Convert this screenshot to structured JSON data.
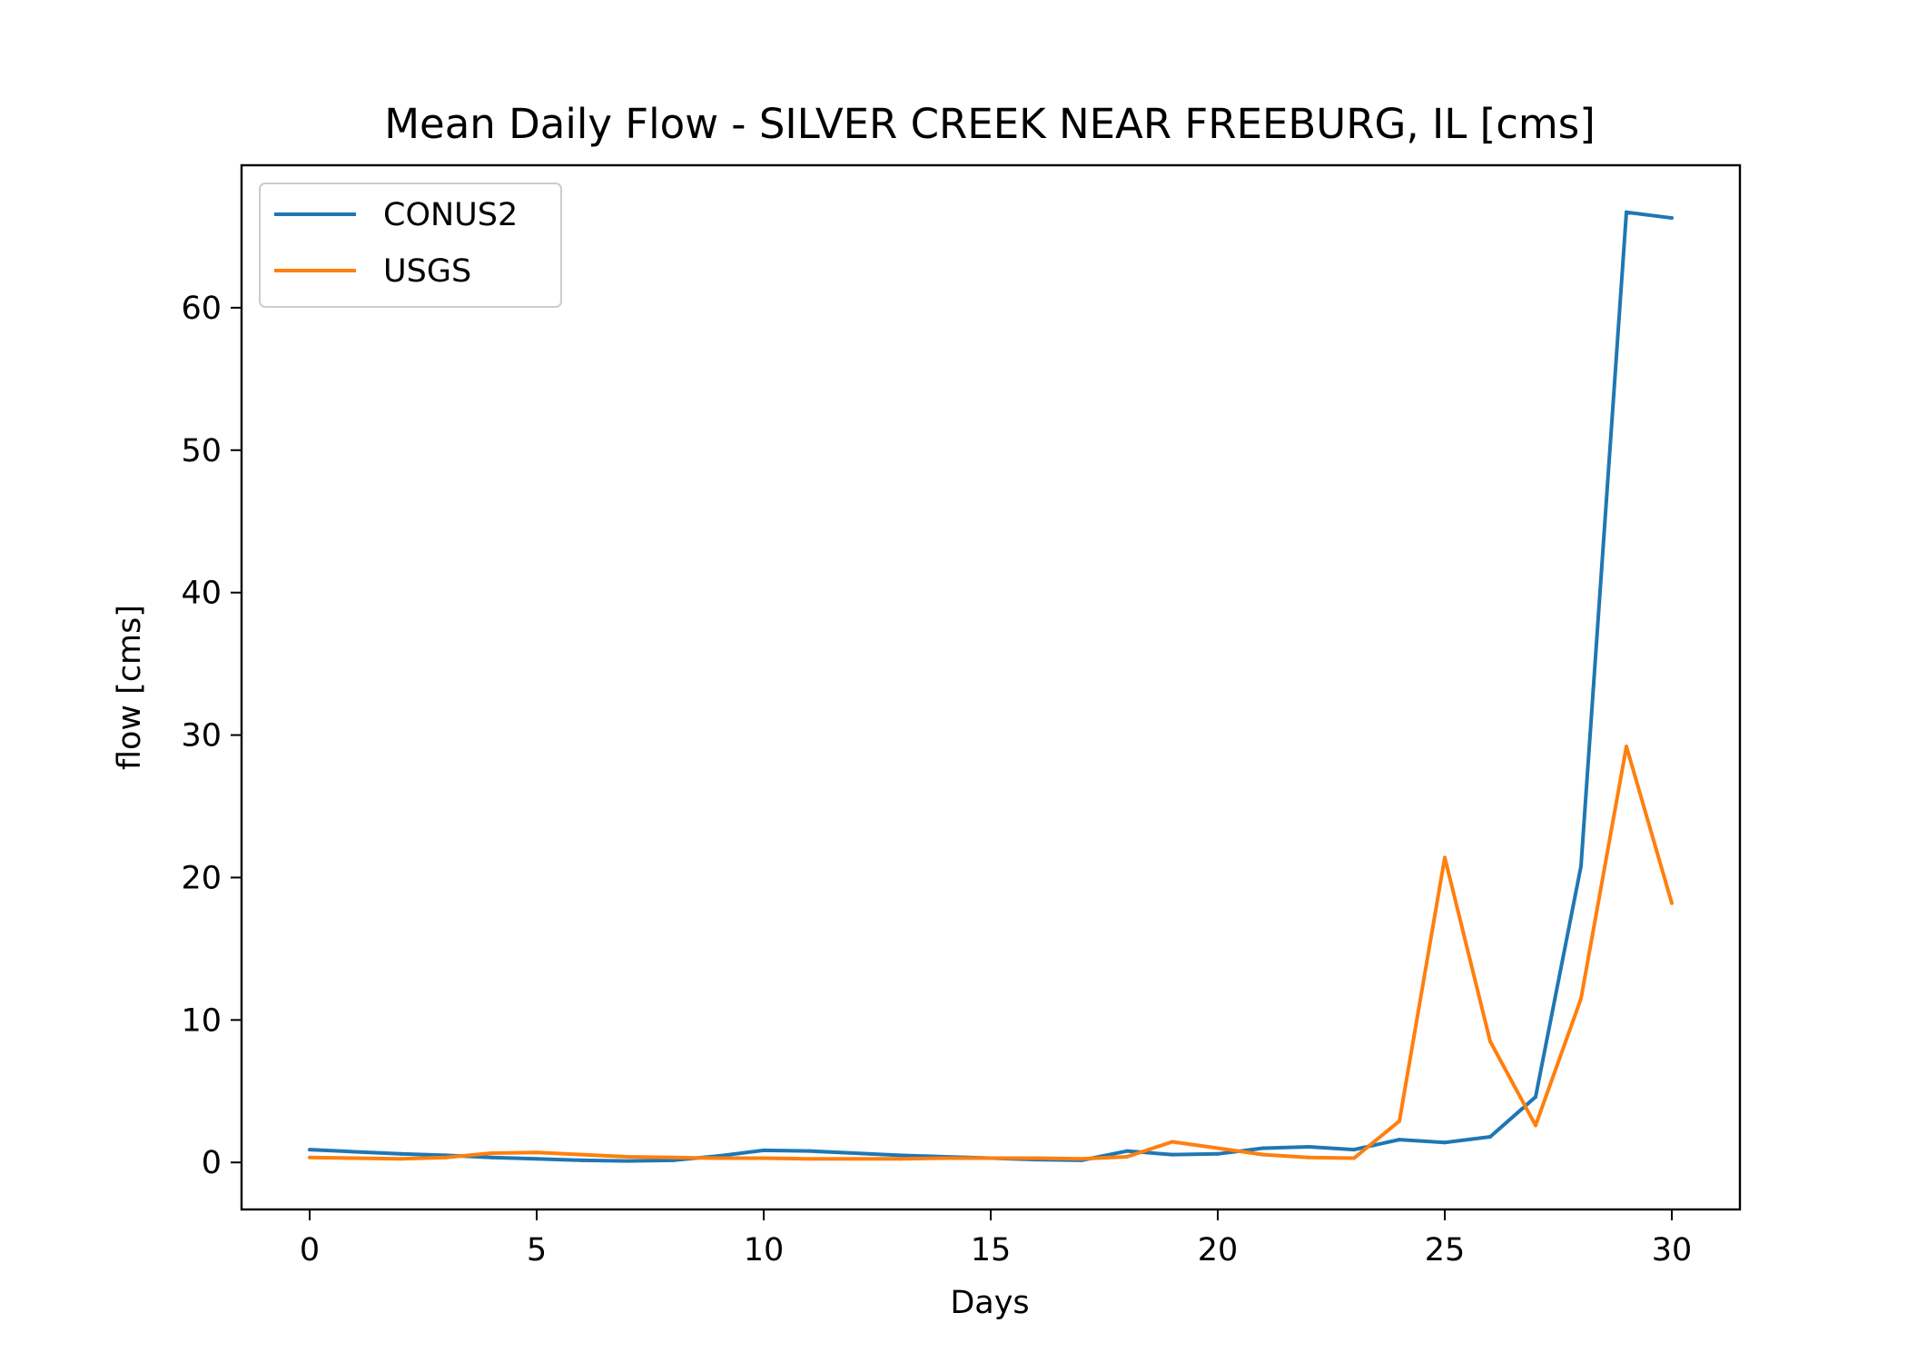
{
  "chart_data": {
    "type": "line",
    "title": "Mean Daily Flow - SILVER CREEK NEAR FREEBURG, IL [cms]",
    "xlabel": "Days",
    "ylabel": "flow [cms]",
    "xlim": [
      -1.5,
      31.5
    ],
    "ylim": [
      -3.3,
      70.0
    ],
    "xticks": [
      0,
      5,
      10,
      15,
      20,
      25,
      30
    ],
    "yticks": [
      0,
      10,
      20,
      30,
      40,
      50,
      60
    ],
    "grid": false,
    "legend_position": "top-left",
    "x": [
      0,
      1,
      2,
      3,
      4,
      5,
      6,
      7,
      8,
      9,
      10,
      11,
      12,
      13,
      14,
      15,
      16,
      17,
      18,
      19,
      20,
      21,
      22,
      23,
      24,
      25,
      26,
      27,
      28,
      29,
      30
    ],
    "series": [
      {
        "name": "CONUS2",
        "color": "#1f77b4",
        "values": [
          0.9,
          0.75,
          0.6,
          0.5,
          0.35,
          0.25,
          0.15,
          0.1,
          0.15,
          0.45,
          0.85,
          0.8,
          0.65,
          0.5,
          0.4,
          0.3,
          0.2,
          0.15,
          0.8,
          0.55,
          0.6,
          1.0,
          1.1,
          0.9,
          1.6,
          1.4,
          1.8,
          4.6,
          20.8,
          66.7,
          66.3
        ]
      },
      {
        "name": "USGS",
        "color": "#ff7f0e",
        "values": [
          0.35,
          0.3,
          0.25,
          0.35,
          0.65,
          0.7,
          0.55,
          0.4,
          0.35,
          0.3,
          0.3,
          0.25,
          0.25,
          0.25,
          0.3,
          0.3,
          0.3,
          0.25,
          0.4,
          1.45,
          1.0,
          0.55,
          0.35,
          0.3,
          2.9,
          21.4,
          8.5,
          2.6,
          11.5,
          29.2,
          18.2
        ]
      }
    ]
  }
}
